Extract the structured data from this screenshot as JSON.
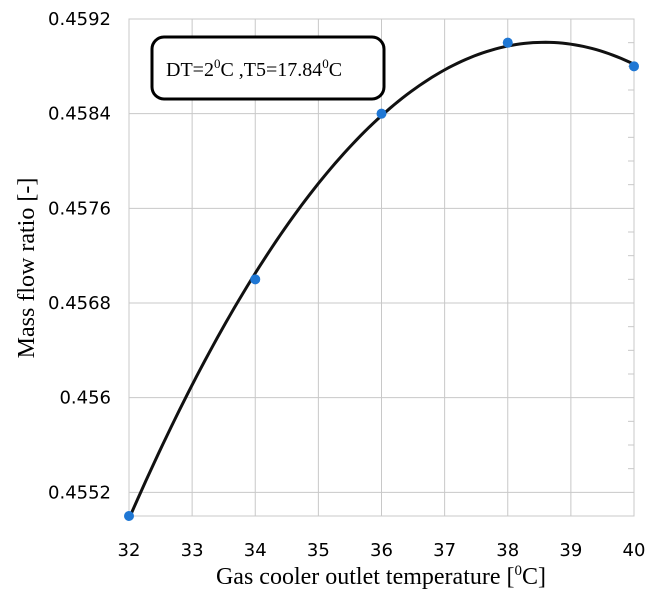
{
  "chart_data": {
    "type": "line",
    "title": "",
    "xlabel": "Gas cooler outlet temperature [",
    "xlabel_unit_sup": "0",
    "xlabel_unit": "C]",
    "ylabel": "Mass flow ratio [-]",
    "xlim": [
      32,
      40
    ],
    "ylim": [
      0.455,
      0.4592
    ],
    "x_ticks": [
      32,
      33,
      34,
      35,
      36,
      37,
      38,
      39,
      40
    ],
    "x_tick_labels": [
      "32",
      "33",
      "34",
      "35",
      "36",
      "37",
      "38",
      "39",
      "40"
    ],
    "y_ticks": [
      0.4552,
      0.456,
      0.4568,
      0.4576,
      0.4584,
      0.4592
    ],
    "y_tick_labels": [
      "0.4552",
      "0.456",
      "0.4568",
      "0.4576",
      "0.4584",
      "0.4592"
    ],
    "grid": true,
    "series": [
      {
        "points_x": [
          32,
          34,
          36,
          38,
          40
        ],
        "points_y": [
          0.455,
          0.457,
          0.4584,
          0.459,
          0.4588
        ],
        "marker_color": "#1f77d4",
        "line_color": "#111111",
        "smooth": true
      }
    ],
    "annotation": {
      "part1": "DT=2",
      "sup1": "0",
      "part2": "C ,T5=17.84",
      "sup2": "0",
      "part3": "C"
    }
  }
}
